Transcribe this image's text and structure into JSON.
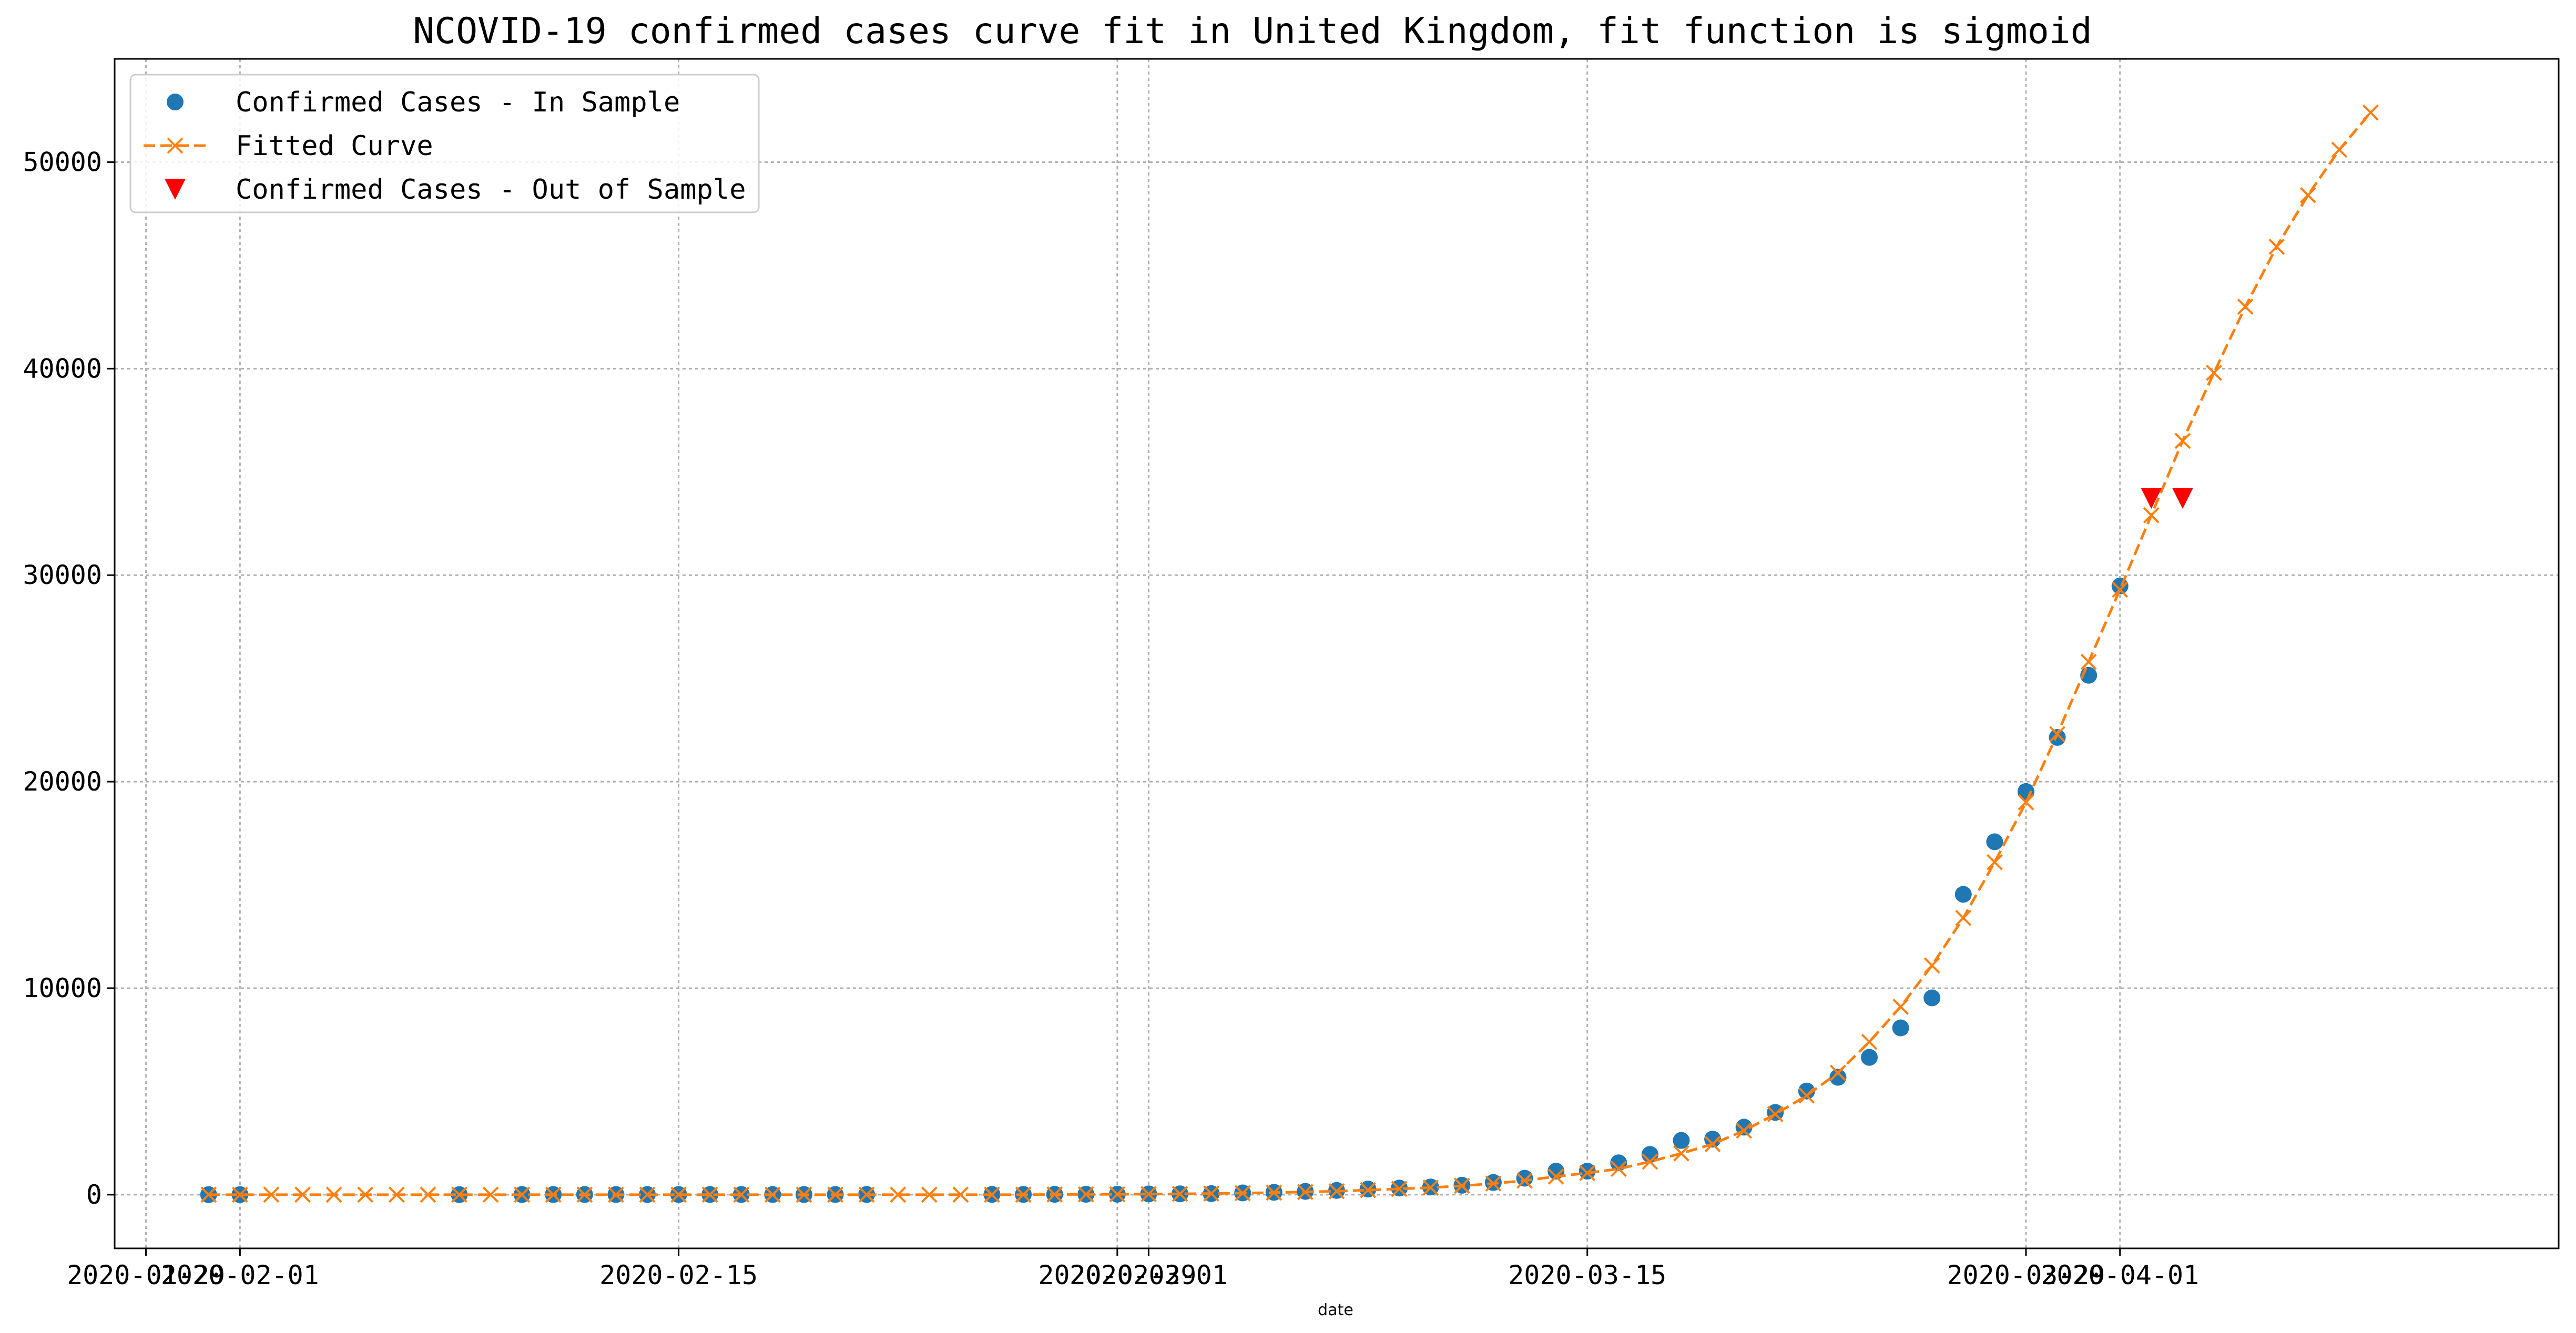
{
  "colors": {
    "in_sample": "#1f77b4",
    "fitted": "#ff7f0e",
    "out_sample": "#ff0000",
    "grid": "#b0b0b0"
  },
  "chart_data": {
    "type": "line",
    "title": "NCOVID-19 confirmed cases curve fit in United Kingdom, fit function is sigmoid",
    "xlabel": "date",
    "ylabel": "",
    "x_is_date": true,
    "xlim": [
      "2020-01-28",
      "2020-04-15"
    ],
    "ylim": [
      -2600,
      55000
    ],
    "x_ticks": [
      {
        "date": "2020-01-29",
        "label": "2020-01-29"
      },
      {
        "date": "2020-02-01",
        "label": "2020-02-01"
      },
      {
        "date": "2020-02-15",
        "label": "2020-02-15"
      },
      {
        "date": "2020-02-29",
        "label": "2020-02-29"
      },
      {
        "date": "2020-03-01",
        "label": "2020-03-01"
      },
      {
        "date": "2020-03-15",
        "label": "2020-03-15"
      },
      {
        "date": "2020-03-29",
        "label": "2020-03-29"
      },
      {
        "date": "2020-04-01",
        "label": "2020-04-01"
      }
    ],
    "y_ticks": [
      0,
      10000,
      20000,
      30000,
      40000,
      50000
    ],
    "grid": true,
    "legend_position": "top-left",
    "series": [
      {
        "name": "Confirmed Cases - In Sample",
        "style": "marker-circle",
        "points": [
          [
            "2020-01-31",
            2
          ],
          [
            "2020-02-01",
            2
          ],
          [
            "2020-02-08",
            3
          ],
          [
            "2020-02-10",
            8
          ],
          [
            "2020-02-11",
            8
          ],
          [
            "2020-02-12",
            9
          ],
          [
            "2020-02-13",
            9
          ],
          [
            "2020-02-14",
            9
          ],
          [
            "2020-02-15",
            9
          ],
          [
            "2020-02-16",
            9
          ],
          [
            "2020-02-17",
            9
          ],
          [
            "2020-02-18",
            9
          ],
          [
            "2020-02-19",
            9
          ],
          [
            "2020-02-20",
            9
          ],
          [
            "2020-02-21",
            9
          ],
          [
            "2020-02-25",
            13
          ],
          [
            "2020-02-26",
            13
          ],
          [
            "2020-02-27",
            15
          ],
          [
            "2020-02-28",
            20
          ],
          [
            "2020-02-29",
            23
          ],
          [
            "2020-03-01",
            36
          ],
          [
            "2020-03-02",
            40
          ],
          [
            "2020-03-03",
            51
          ],
          [
            "2020-03-04",
            85
          ],
          [
            "2020-03-05",
            114
          ],
          [
            "2020-03-06",
            160
          ],
          [
            "2020-03-07",
            206
          ],
          [
            "2020-03-08",
            271
          ],
          [
            "2020-03-09",
            321
          ],
          [
            "2020-03-10",
            373
          ],
          [
            "2020-03-11",
            456
          ],
          [
            "2020-03-12",
            590
          ],
          [
            "2020-03-13",
            798
          ],
          [
            "2020-03-14",
            1140
          ],
          [
            "2020-03-15",
            1140
          ],
          [
            "2020-03-16",
            1543
          ],
          [
            "2020-03-17",
            1950
          ],
          [
            "2020-03-18",
            2626
          ],
          [
            "2020-03-19",
            2689
          ],
          [
            "2020-03-20",
            3269
          ],
          [
            "2020-03-21",
            3983
          ],
          [
            "2020-03-22",
            5018
          ],
          [
            "2020-03-23",
            5683
          ],
          [
            "2020-03-24",
            6650
          ],
          [
            "2020-03-25",
            8077
          ],
          [
            "2020-03-26",
            9529
          ],
          [
            "2020-03-27",
            14543
          ],
          [
            "2020-03-28",
            17089
          ],
          [
            "2020-03-29",
            19522
          ],
          [
            "2020-03-30",
            22141
          ],
          [
            "2020-03-31",
            25150
          ],
          [
            "2020-04-01",
            29474
          ]
        ]
      },
      {
        "name": "Fitted Curve",
        "style": "dashed-line-x",
        "points": [
          [
            "2020-01-31",
            0
          ],
          [
            "2020-02-01",
            0
          ],
          [
            "2020-02-02",
            0
          ],
          [
            "2020-02-03",
            0
          ],
          [
            "2020-02-04",
            0
          ],
          [
            "2020-02-05",
            0
          ],
          [
            "2020-02-06",
            0
          ],
          [
            "2020-02-07",
            0
          ],
          [
            "2020-02-08",
            0
          ],
          [
            "2020-02-09",
            0
          ],
          [
            "2020-02-10",
            0
          ],
          [
            "2020-02-11",
            0
          ],
          [
            "2020-02-12",
            0
          ],
          [
            "2020-02-13",
            0
          ],
          [
            "2020-02-14",
            0
          ],
          [
            "2020-02-15",
            0
          ],
          [
            "2020-02-16",
            0
          ],
          [
            "2020-02-17",
            0
          ],
          [
            "2020-02-18",
            0
          ],
          [
            "2020-02-19",
            0
          ],
          [
            "2020-02-20",
            0
          ],
          [
            "2020-02-21",
            0
          ],
          [
            "2020-02-22",
            0
          ],
          [
            "2020-02-23",
            0
          ],
          [
            "2020-02-24",
            0
          ],
          [
            "2020-02-25",
            0
          ],
          [
            "2020-02-26",
            0
          ],
          [
            "2020-02-27",
            10
          ],
          [
            "2020-02-28",
            15
          ],
          [
            "2020-02-29",
            20
          ],
          [
            "2020-03-01",
            30
          ],
          [
            "2020-03-02",
            40
          ],
          [
            "2020-03-03",
            55
          ],
          [
            "2020-03-04",
            75
          ],
          [
            "2020-03-05",
            100
          ],
          [
            "2020-03-06",
            130
          ],
          [
            "2020-03-07",
            170
          ],
          [
            "2020-03-08",
            220
          ],
          [
            "2020-03-09",
            280
          ],
          [
            "2020-03-10",
            340
          ],
          [
            "2020-03-11",
            430
          ],
          [
            "2020-03-12",
            540
          ],
          [
            "2020-03-13",
            680
          ],
          [
            "2020-03-14",
            880
          ],
          [
            "2020-03-15",
            1050
          ],
          [
            "2020-03-16",
            1250
          ],
          [
            "2020-03-17",
            1600
          ],
          [
            "2020-03-18",
            2000
          ],
          [
            "2020-03-19",
            2450
          ],
          [
            "2020-03-20",
            3100
          ],
          [
            "2020-03-21",
            3900
          ],
          [
            "2020-03-22",
            4800
          ],
          [
            "2020-03-23",
            5900
          ],
          [
            "2020-03-24",
            7400
          ],
          [
            "2020-03-25",
            9100
          ],
          [
            "2020-03-26",
            11100
          ],
          [
            "2020-03-27",
            13400
          ],
          [
            "2020-03-28",
            16100
          ],
          [
            "2020-03-29",
            19000
          ],
          [
            "2020-03-30",
            22300
          ],
          [
            "2020-03-31",
            25800
          ],
          [
            "2020-04-01",
            29300
          ],
          [
            "2020-04-02",
            32900
          ],
          [
            "2020-04-03",
            36500
          ],
          [
            "2020-04-04",
            39800
          ],
          [
            "2020-04-05",
            43000
          ],
          [
            "2020-04-06",
            45900
          ],
          [
            "2020-04-07",
            48400
          ],
          [
            "2020-04-08",
            50600
          ],
          [
            "2020-04-09",
            52400
          ]
        ]
      },
      {
        "name": "Confirmed Cases - Out of Sample",
        "style": "marker-triangle-down",
        "points": [
          [
            "2020-04-02",
            33718
          ],
          [
            "2020-04-03",
            33718
          ]
        ]
      }
    ]
  }
}
